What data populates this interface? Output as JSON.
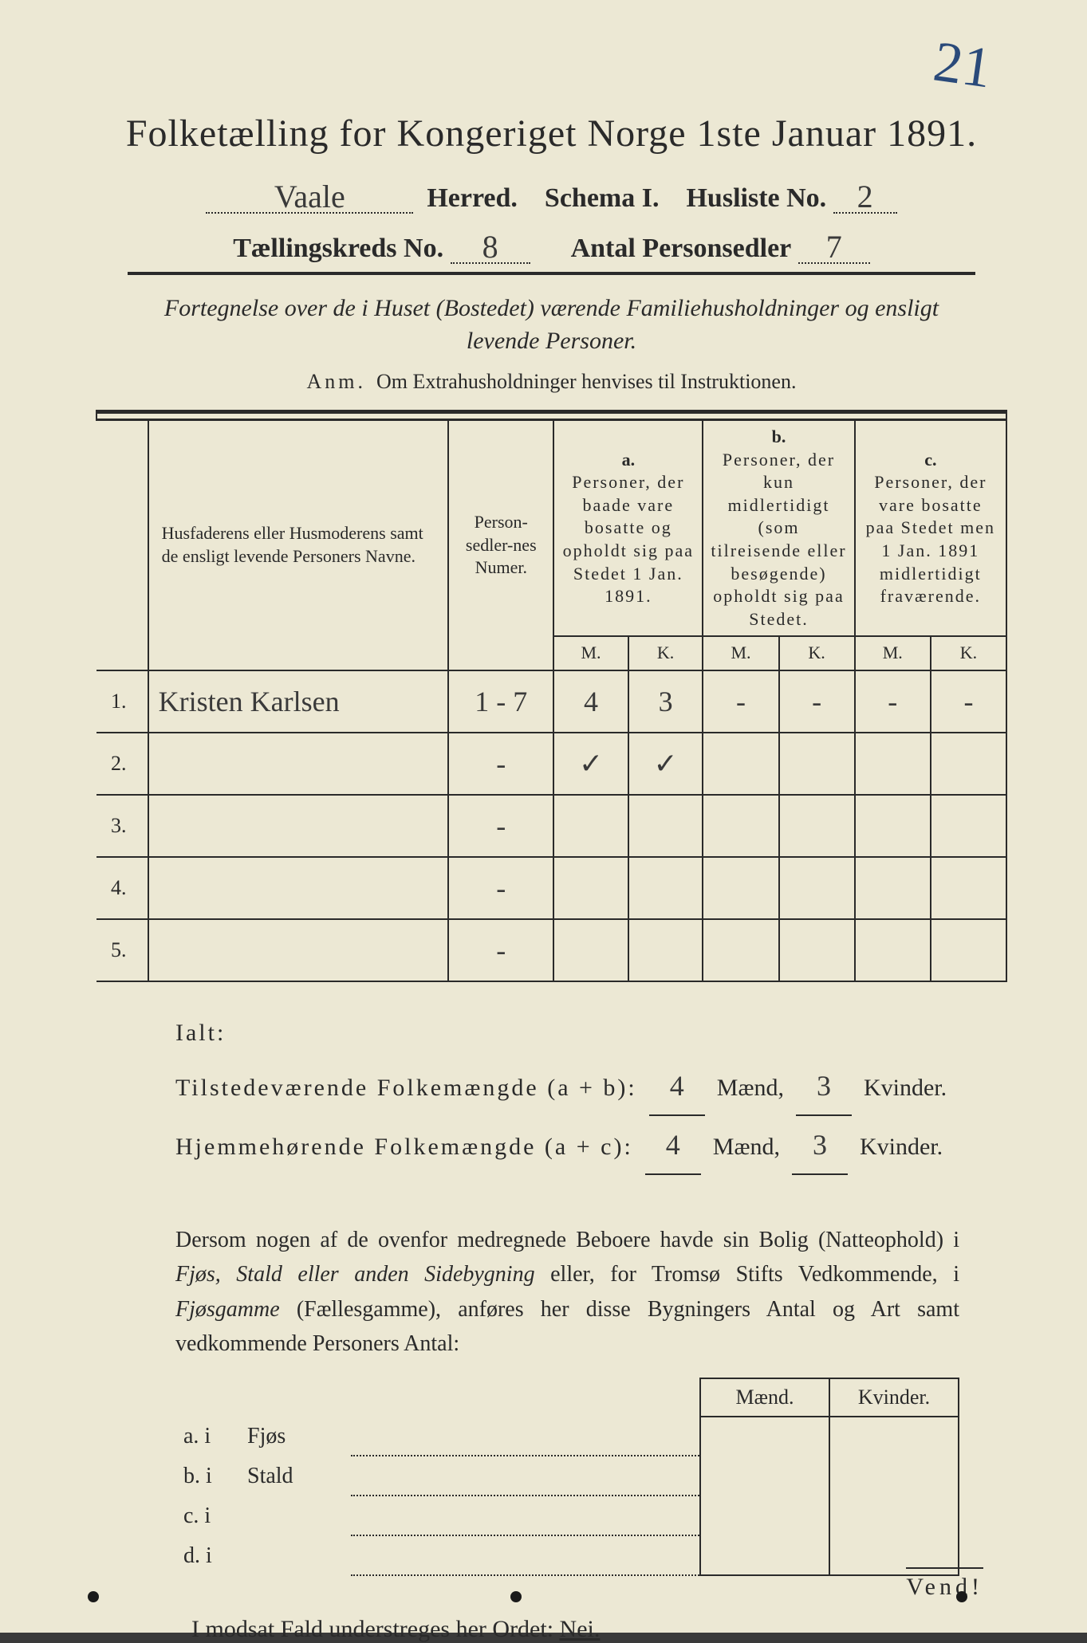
{
  "page_number_handwritten": "21",
  "title": "Folketælling for Kongeriget Norge 1ste Januar 1891.",
  "header": {
    "herred_value": "Vaale",
    "herred_label": "Herred.",
    "schema_label": "Schema I.",
    "husliste_label": "Husliste No.",
    "husliste_value": "2",
    "kreds_label": "Tællingskreds No.",
    "kreds_value": "8",
    "personsedler_label": "Antal Personsedler",
    "personsedler_value": "7"
  },
  "subtitle": "Fortegnelse over de i Huset (Bostedet) værende Familiehusholdninger og ensligt levende Personer.",
  "anm_label": "Anm.",
  "anm_text": "Om Extrahusholdninger henvises til Instruktionen.",
  "table": {
    "col_name": "Husfaderens eller Husmoderens samt de ensligt levende Personers Navne.",
    "col_numer": "Person-sedler-nes Numer.",
    "col_a_label": "a.",
    "col_a_text": "Personer, der baade vare bosatte og opholdt sig paa Stedet 1 Jan. 1891.",
    "col_b_label": "b.",
    "col_b_text": "Personer, der kun midlertidigt (som tilreisende eller besøgende) opholdt sig paa Stedet.",
    "col_c_label": "c.",
    "col_c_text": "Personer, der vare bosatte paa Stedet men 1 Jan. 1891 midlertidigt fraværende.",
    "m_label": "M.",
    "k_label": "K.",
    "rows": [
      {
        "num": "1.",
        "name": "Kristen Karlsen",
        "numer": "1 - 7",
        "a_m": "4",
        "a_k": "3",
        "b_m": "-",
        "b_k": "-",
        "c_m": "-",
        "c_k": "-"
      },
      {
        "num": "2.",
        "name": "",
        "numer": "-",
        "a_m": "✓",
        "a_k": "✓",
        "b_m": "",
        "b_k": "",
        "c_m": "",
        "c_k": ""
      },
      {
        "num": "3.",
        "name": "",
        "numer": "-",
        "a_m": "",
        "a_k": "",
        "b_m": "",
        "b_k": "",
        "c_m": "",
        "c_k": ""
      },
      {
        "num": "4.",
        "name": "",
        "numer": "-",
        "a_m": "",
        "a_k": "",
        "b_m": "",
        "b_k": "",
        "c_m": "",
        "c_k": ""
      },
      {
        "num": "5.",
        "name": "",
        "numer": "-",
        "a_m": "",
        "a_k": "",
        "b_m": "",
        "b_k": "",
        "c_m": "",
        "c_k": ""
      }
    ]
  },
  "totals": {
    "ialt_label": "Ialt:",
    "line1_label": "Tilstedeværende Folkemængde (a + b):",
    "line1_m": "4",
    "line1_k": "3",
    "line2_label": "Hjemmehørende Folkemængde (a + c):",
    "line2_m": "4",
    "line2_k": "3",
    "maend": "Mænd,",
    "kvinder": "Kvinder."
  },
  "paragraph": {
    "p1": "Dersom nogen af de ovenfor medregnede Beboere havde sin Bolig (Natteophold) i ",
    "p2": "Fjøs, Stald eller anden Sidebygning",
    "p3": " eller, for Tromsø Stifts Vedkommende, i ",
    "p4": "Fjøsgamme",
    "p5": " (Fællesgamme), anføres her disse Bygningers Antal og Art samt vedkommende Personers Antal:"
  },
  "lower": {
    "maend": "Mænd.",
    "kvinder": "Kvinder.",
    "rows": [
      {
        "lab": "a.  i",
        "type": "Fjøs"
      },
      {
        "lab": "b.  i",
        "type": "Stald"
      },
      {
        "lab": "c.  i",
        "type": ""
      },
      {
        "lab": "d.  i",
        "type": ""
      }
    ]
  },
  "nei_line": "I modsat Fald understreges her Ordet: ",
  "nei_word": "Nei.",
  "vend": "Vend!",
  "colors": {
    "paper": "#ece8d4",
    "ink": "#2a2a2a",
    "hw_blue": "#2a4a7a"
  }
}
